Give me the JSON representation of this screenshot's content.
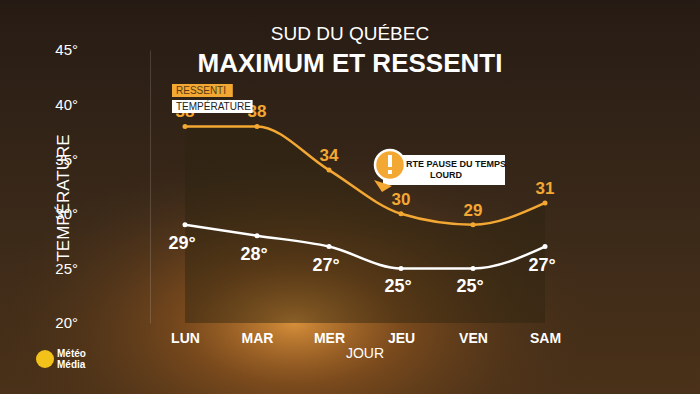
{
  "chart_data": {
    "type": "line",
    "subtitle": "SUD DU QUÉBEC",
    "title": "MAXIMUM ET RESSENTI",
    "x_label": "JOUR",
    "y_label": "TEMPÉRATURE",
    "categories": [
      "LUN",
      "MAR",
      "MER",
      "JEU",
      "VEN",
      "SAM"
    ],
    "series": [
      {
        "name": "RESSENTI",
        "color": "#f3a833",
        "marker": "circle",
        "values": [
          38,
          38,
          34,
          30,
          29,
          31
        ]
      },
      {
        "name": "TEMPÉRATURE",
        "color": "#ffffff",
        "marker": "circle",
        "values": [
          29,
          28,
          27,
          25,
          25,
          27
        ],
        "value_labels": [
          "29°",
          "28°",
          "27°",
          "25°",
          "25°",
          "27°"
        ]
      }
    ],
    "ylim": [
      20,
      45
    ],
    "yticks": [
      {
        "value": 20,
        "label": "20°"
      },
      {
        "value": 25,
        "label": "25°"
      },
      {
        "value": 30,
        "label": "30°"
      },
      {
        "value": 35,
        "label": "35°"
      },
      {
        "value": 40,
        "label": "40°"
      },
      {
        "value": 45,
        "label": "45°"
      }
    ],
    "grid": false,
    "legend": "top-left",
    "data_labels": true,
    "annotations": [
      {
        "text": "COURTE PAUSE DU TEMPS LOURD"
      }
    ],
    "logo": "Météo Média"
  }
}
